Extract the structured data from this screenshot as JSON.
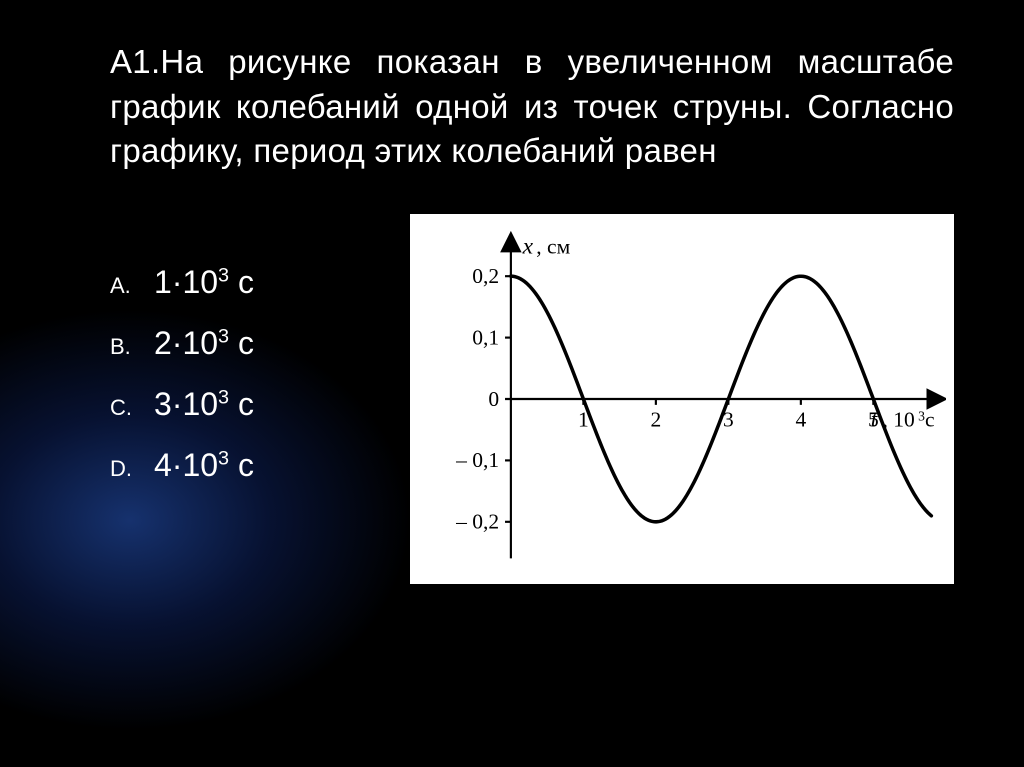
{
  "question": "А1.На рисунке показан в увеличенном масштабе график колебаний одной из точек струны. Согласно графику, период этих колебаний равен",
  "options": {
    "a_letter": "A.",
    "a_value": "1·10",
    "a_sup": "3",
    "a_unit": " с",
    "b_letter": "B.",
    "b_value": "2·10",
    "b_sup": "3",
    "b_unit": " с",
    "c_letter": "C.",
    "c_value": "3·10",
    "c_sup": "3",
    "c_unit": " с",
    "d_letter": "D.",
    "d_value": "4·10",
    "d_sup": "3",
    "d_unit": " с"
  },
  "chart": {
    "type": "line",
    "background": "#ffffff",
    "curve_color": "#000000",
    "axis_color": "#000000",
    "curve_width": 3.6,
    "axis_width": 2.2,
    "y_title": "x",
    "y_unit": ", см",
    "x_title": "t",
    "x_unit": ", 10",
    "x_unit_sup": "3",
    "x_unit_tail": "с",
    "y_ticks": [
      {
        "v": 0.2,
        "label": "0,2"
      },
      {
        "v": 0.1,
        "label": "0,1"
      },
      {
        "v": 0.0,
        "label": "0"
      },
      {
        "v": -0.1,
        "label": "– 0,1"
      },
      {
        "v": -0.2,
        "label": "– 0,2"
      }
    ],
    "x_ticks": [
      {
        "v": 1,
        "label": "1"
      },
      {
        "v": 2,
        "label": "2"
      },
      {
        "v": 3,
        "label": "3"
      },
      {
        "v": 4,
        "label": "4"
      },
      {
        "v": 5,
        "label": "5"
      }
    ],
    "xlim": [
      0,
      5.8
    ],
    "ylim": [
      -0.25,
      0.25
    ],
    "amplitude": 0.2,
    "period": 4,
    "phase_offset": 0,
    "label_fontsize": 22,
    "title_fontsize": 24
  }
}
